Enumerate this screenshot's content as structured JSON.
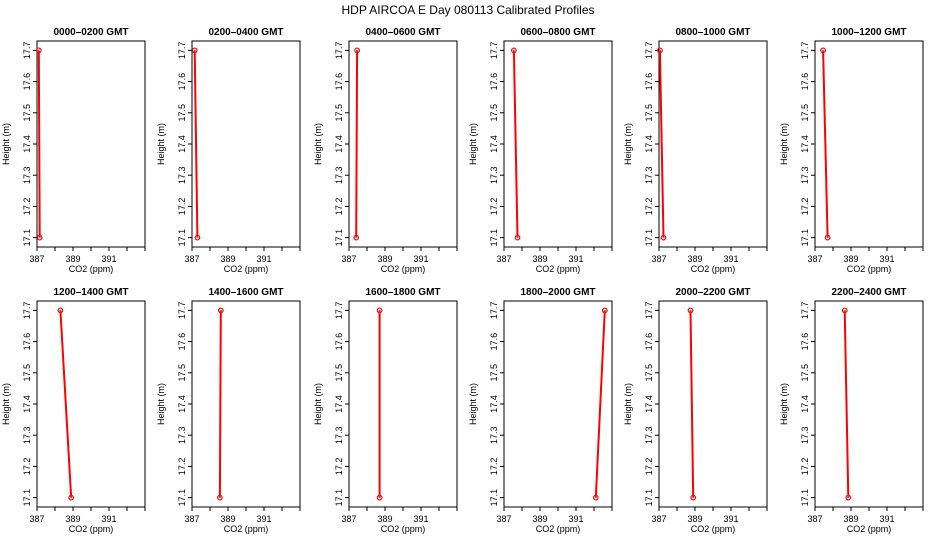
{
  "title": "HDP AIRCOA E  Day 080113  Calibrated Profiles",
  "colors": {
    "profile": "#ff0000",
    "axis": "#000000"
  },
  "chart_data": {
    "type": "line",
    "xlabel": "CO2 (ppm)",
    "ylabel": "Height (m)",
    "xlim": [
      387,
      393
    ],
    "ylim": [
      17.07,
      17.73
    ],
    "x_ticks": [
      "387",
      "389",
      "391"
    ],
    "x_tick_values": [
      387,
      388,
      389,
      390,
      391,
      392,
      393
    ],
    "y_ticks": [
      "17.1",
      "17.2",
      "17.3",
      "17.4",
      "17.5",
      "17.6",
      "17.7"
    ],
    "y_tick_values": [
      17.1,
      17.2,
      17.3,
      17.4,
      17.5,
      17.6,
      17.7
    ],
    "panels": [
      {
        "title": "0000–0200 GMT",
        "points": [
          {
            "co2": 387.1,
            "height": 17.7
          },
          {
            "co2": 387.15,
            "height": 17.1
          }
        ]
      },
      {
        "title": "0200–0400 GMT",
        "points": [
          {
            "co2": 387.15,
            "height": 17.7
          },
          {
            "co2": 387.3,
            "height": 17.1
          }
        ]
      },
      {
        "title": "0400–0600 GMT",
        "points": [
          {
            "co2": 387.45,
            "height": 17.7
          },
          {
            "co2": 387.4,
            "height": 17.1
          }
        ]
      },
      {
        "title": "0600–0800 GMT",
        "points": [
          {
            "co2": 387.55,
            "height": 17.7
          },
          {
            "co2": 387.75,
            "height": 17.1
          }
        ]
      },
      {
        "title": "0800–1000 GMT",
        "points": [
          {
            "co2": 387.05,
            "height": 17.7
          },
          {
            "co2": 387.25,
            "height": 17.1
          }
        ]
      },
      {
        "title": "1000–1200 GMT",
        "points": [
          {
            "co2": 387.45,
            "height": 17.7
          },
          {
            "co2": 387.7,
            "height": 17.1
          }
        ]
      },
      {
        "title": "1200–1400 GMT",
        "points": [
          {
            "co2": 388.3,
            "height": 17.7
          },
          {
            "co2": 388.9,
            "height": 17.1
          }
        ]
      },
      {
        "title": "1400–1600 GMT",
        "points": [
          {
            "co2": 388.6,
            "height": 17.7
          },
          {
            "co2": 388.55,
            "height": 17.1
          }
        ]
      },
      {
        "title": "1600–1800 GMT",
        "points": [
          {
            "co2": 388.7,
            "height": 17.7
          },
          {
            "co2": 388.7,
            "height": 17.1
          }
        ]
      },
      {
        "title": "1800–2000 GMT",
        "points": [
          {
            "co2": 392.6,
            "height": 17.7
          },
          {
            "co2": 392.1,
            "height": 17.1
          }
        ]
      },
      {
        "title": "2000–2200 GMT",
        "points": [
          {
            "co2": 388.75,
            "height": 17.7
          },
          {
            "co2": 388.9,
            "height": 17.1
          }
        ]
      },
      {
        "title": "2200–2400 GMT",
        "points": [
          {
            "co2": 388.65,
            "height": 17.7
          },
          {
            "co2": 388.85,
            "height": 17.1
          }
        ]
      }
    ]
  }
}
